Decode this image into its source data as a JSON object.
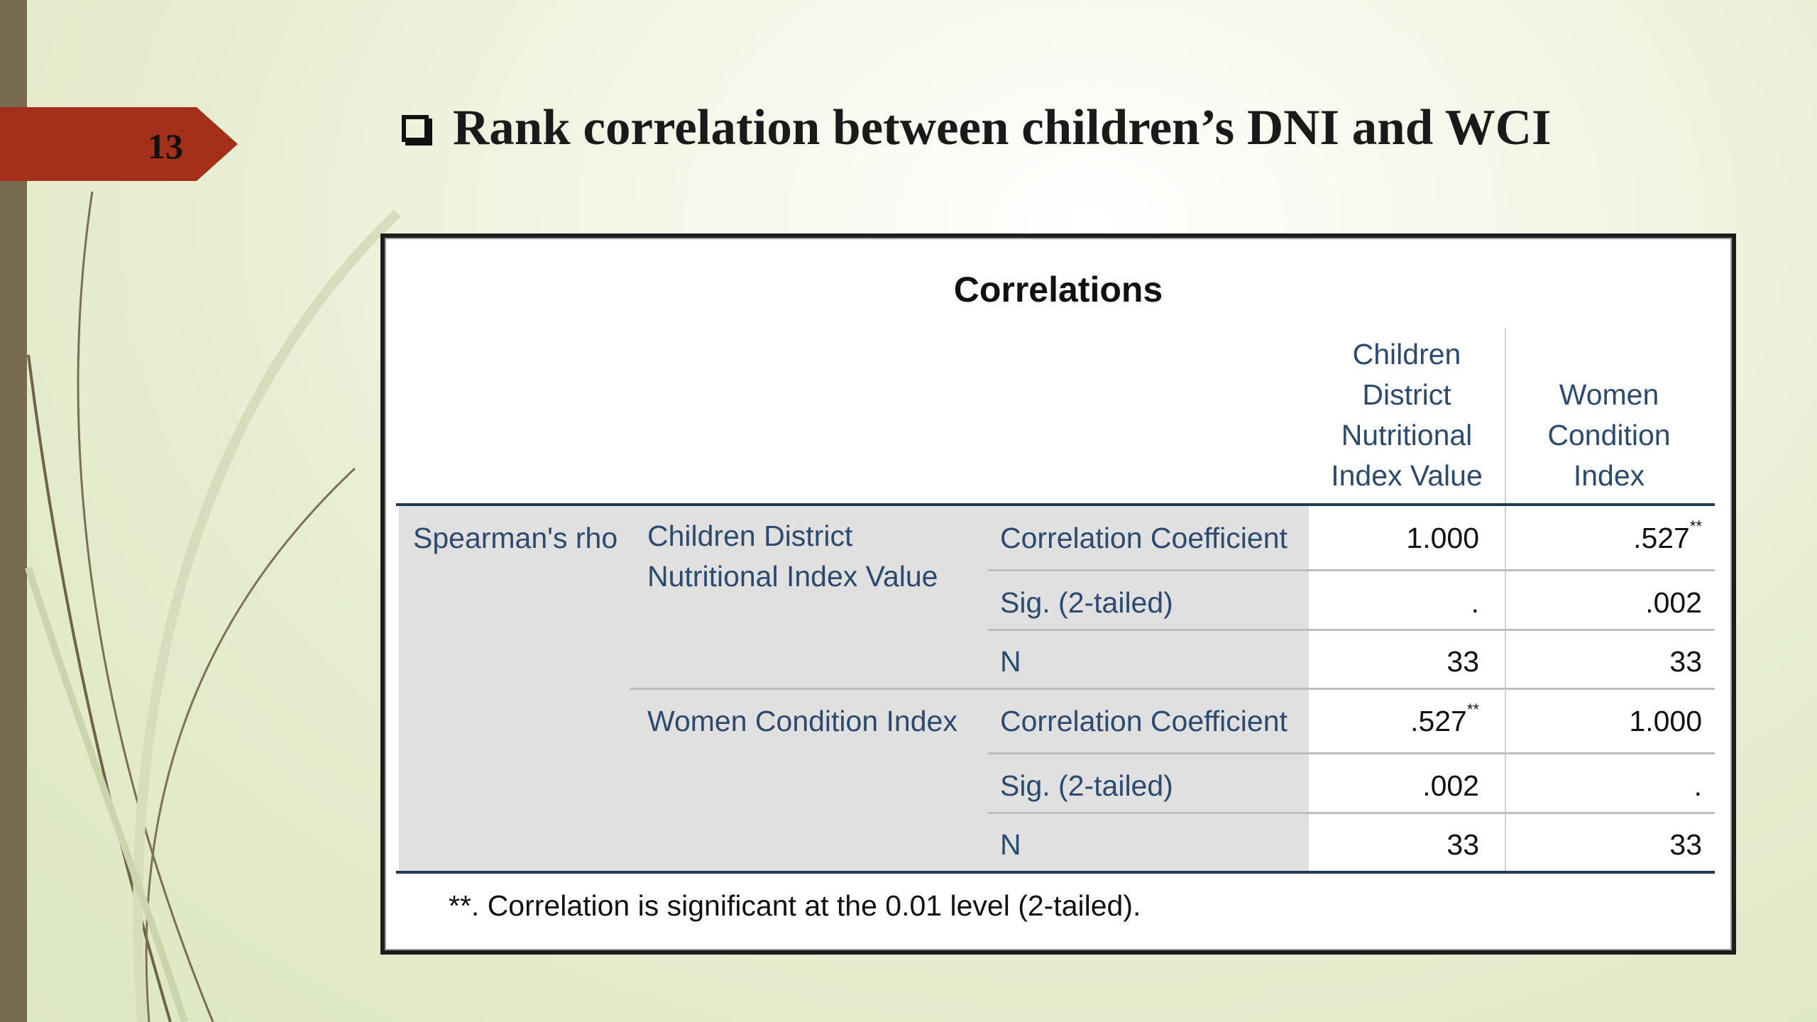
{
  "slide": {
    "number": "13",
    "title": "Rank correlation between children’s DNI and WCI"
  },
  "table": {
    "title": "Correlations",
    "col_headers": [
      [
        "Children",
        "District",
        "Nutritional",
        "Index Value"
      ],
      [
        "Women",
        "Condition",
        "Index"
      ]
    ],
    "group_label": "Spearman's rho",
    "variables": [
      {
        "label_lines": [
          "Children District",
          "Nutritional Index Value"
        ],
        "rows": [
          {
            "stat": "Correlation Coefficient",
            "values": [
              "1.000",
              ".527"
            ],
            "marks": [
              "",
              "**"
            ]
          },
          {
            "stat": "Sig. (2-tailed)",
            "values": [
              ".",
              ".002"
            ],
            "marks": [
              "",
              ""
            ]
          },
          {
            "stat": "N",
            "values": [
              "33",
              "33"
            ],
            "marks": [
              "",
              ""
            ]
          }
        ]
      },
      {
        "label_lines": [
          "Women Condition Index"
        ],
        "rows": [
          {
            "stat": "Correlation Coefficient",
            "values": [
              ".527",
              "1.000"
            ],
            "marks": [
              "**",
              ""
            ]
          },
          {
            "stat": "Sig. (2-tailed)",
            "values": [
              ".002",
              "."
            ],
            "marks": [
              "",
              ""
            ]
          },
          {
            "stat": "N",
            "values": [
              "33",
              "33"
            ],
            "marks": [
              "",
              ""
            ]
          }
        ]
      }
    ],
    "footnote": "**. Correlation is significant at the 0.01 level (2-tailed)."
  },
  "colors": {
    "accent_badge": "#a5301a",
    "left_bar": "#786a4f",
    "header_text": "#2c4a6e"
  }
}
